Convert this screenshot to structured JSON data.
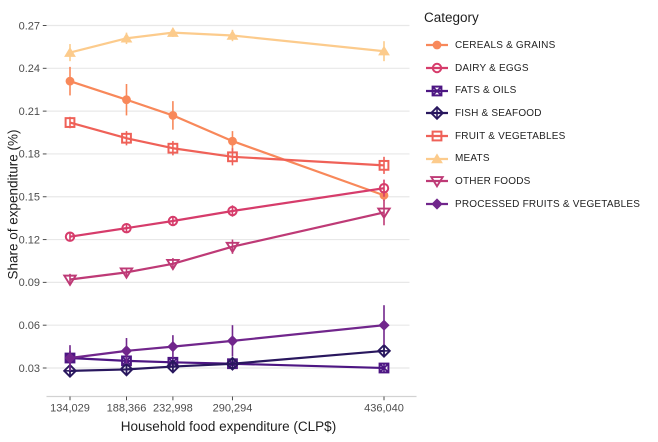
{
  "chart_data": {
    "type": "line",
    "title": "",
    "xlabel": "Household food expenditure (CLP$)",
    "ylabel": "Share of expenditure (%)",
    "legend_title": "Category",
    "legend_position": "right",
    "grid": "horizontal-major-only",
    "background": "#ffffff",
    "gridline_color": "#e8e8e8",
    "axis_line_color": "#d2d2d2",
    "tick_color": "#4d4d4d",
    "tick_label_color": "#4d4d4d",
    "x": [
      134029,
      188366,
      232998,
      290294,
      436040
    ],
    "x_tick_labels": [
      "134,029",
      "188,366",
      "232,998",
      "290,294",
      "436,040"
    ],
    "y_ticks": [
      0.03,
      0.06,
      0.09,
      0.12,
      0.15,
      0.18,
      0.21,
      0.24,
      0.27
    ],
    "y_tick_labels": [
      "0.03",
      "0.06",
      "0.09",
      "0.12",
      "0.15",
      "0.18",
      "0.21",
      "0.24",
      "0.27"
    ],
    "ylim": [
      0.01,
      0.278
    ],
    "error_bars": true,
    "series": [
      {
        "name": "CEREALS & GRAINS",
        "color": "#F8885A",
        "marker": "circle-filled",
        "values": [
          0.231,
          0.218,
          0.207,
          0.189,
          0.151
        ],
        "errors": [
          0.01,
          0.011,
          0.01,
          0.007,
          0.004
        ]
      },
      {
        "name": "DAIRY & EGGS",
        "color": "#D63C6B",
        "marker": "circle-open",
        "values": [
          0.122,
          0.128,
          0.133,
          0.14,
          0.156
        ],
        "errors": [
          0.003,
          0.003,
          0.003,
          0.004,
          0.006
        ]
      },
      {
        "name": "FATS & OILS",
        "color": "#4D1683",
        "marker": "square-x",
        "values": [
          0.037,
          0.035,
          0.034,
          0.033,
          0.03
        ],
        "errors": [
          0.005,
          0.004,
          0.003,
          0.003,
          0.003
        ]
      },
      {
        "name": "FISH & SEAFOOD",
        "color": "#29175E",
        "marker": "diamond-plus",
        "values": [
          0.028,
          0.029,
          0.031,
          0.033,
          0.042
        ],
        "errors": [
          0.003,
          0.003,
          0.003,
          0.003,
          0.004
        ]
      },
      {
        "name": "FRUIT & VEGETABLES",
        "color": "#EF6158",
        "marker": "square-open",
        "values": [
          0.202,
          0.191,
          0.184,
          0.178,
          0.172
        ],
        "errors": [
          0.004,
          0.005,
          0.005,
          0.006,
          0.006
        ]
      },
      {
        "name": "MEATS",
        "color": "#FCCB8C",
        "marker": "triangle-up-filled",
        "values": [
          0.251,
          0.261,
          0.265,
          0.263,
          0.252
        ],
        "errors": [
          0.006,
          0.004,
          0.003,
          0.004,
          0.007
        ]
      },
      {
        "name": "OTHER FOODS",
        "color": "#BE3A76",
        "marker": "triangle-down-open",
        "values": [
          0.092,
          0.097,
          0.103,
          0.115,
          0.139
        ],
        "errors": [
          0.004,
          0.003,
          0.004,
          0.005,
          0.009
        ]
      },
      {
        "name": "PROCESSED FRUITS & VEGETABLES",
        "color": "#71268C",
        "marker": "diamond-filled",
        "values": [
          0.037,
          0.042,
          0.045,
          0.049,
          0.06
        ],
        "errors": [
          0.009,
          0.009,
          0.008,
          0.011,
          0.014
        ]
      }
    ]
  }
}
